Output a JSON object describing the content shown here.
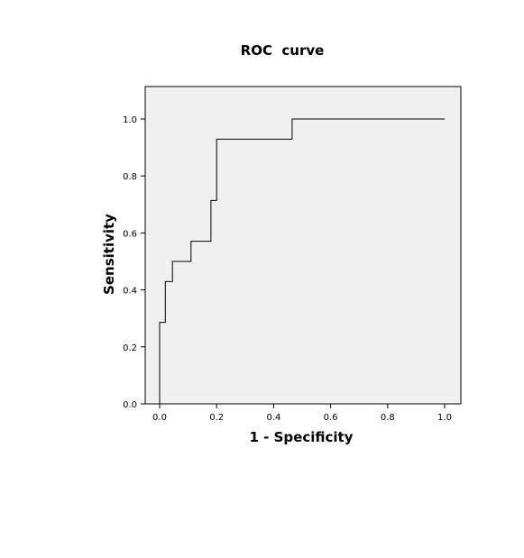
{
  "chart_data": {
    "type": "line",
    "title": "ROC  curve",
    "xlabel": "1 - Specificity",
    "ylabel": "Sensitivity",
    "xlim": [
      0,
      1
    ],
    "ylim": [
      0,
      1
    ],
    "x_ticks": [
      "0.0",
      "0.2",
      "0.4",
      "0.6",
      "0.8",
      "1.0"
    ],
    "y_ticks": [
      "0.0",
      "0.2",
      "0.4",
      "0.6",
      "0.8",
      "1.0"
    ],
    "grid": false,
    "legend": "none",
    "plot_background": "#f0f0f0",
    "line_color": "#000000",
    "series": [
      {
        "x": [
          0.0,
          0.0,
          0.02,
          0.02,
          0.045,
          0.045,
          0.11,
          0.11,
          0.18,
          0.18,
          0.2,
          0.2,
          0.465,
          0.465,
          1.0
        ],
        "y": [
          0.0,
          0.286,
          0.286,
          0.429,
          0.429,
          0.5,
          0.5,
          0.571,
          0.571,
          0.714,
          0.714,
          0.929,
          0.929,
          1.0,
          1.0
        ]
      }
    ]
  }
}
